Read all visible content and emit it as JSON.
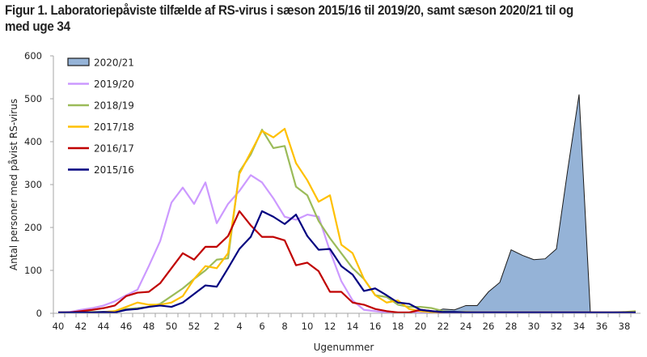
{
  "figure": {
    "title": "Figur 1. Laboratoriepåviste tilfælde af RS-virus i sæson 2015/16 til 2019/20, samt sæson 2020/21 til og med uge 34"
  },
  "chart_data": {
    "type": "line",
    "title": "Figur 1. Laboratoriepåviste tilfælde af RS-virus i sæson 2015/16 til 2019/20, samt sæson 2020/21 til og med uge 34",
    "xlabel": "Ugenummer",
    "ylabel": "Antal personer med påvist RS-virus",
    "ylim": [
      0,
      600
    ],
    "yticks": [
      0,
      100,
      200,
      300,
      400,
      500,
      600
    ],
    "x": [
      40,
      41,
      42,
      43,
      44,
      45,
      46,
      47,
      48,
      49,
      50,
      51,
      52,
      1,
      2,
      3,
      4,
      5,
      6,
      7,
      8,
      9,
      10,
      11,
      12,
      13,
      14,
      15,
      16,
      17,
      18,
      19,
      20,
      21,
      22,
      23,
      24,
      25,
      26,
      27,
      28,
      29,
      30,
      31,
      32,
      33,
      34,
      35,
      36,
      37,
      38,
      39
    ],
    "xtick_labels": [
      "40",
      "42",
      "44",
      "46",
      "48",
      "50",
      "52",
      "2",
      "4",
      "6",
      "8",
      "10",
      "12",
      "14",
      "16",
      "18",
      "20",
      "22",
      "24",
      "26",
      "28",
      "30",
      "32",
      "34",
      "36",
      "38"
    ],
    "grid": false,
    "legend_position": "top-left",
    "colors": {
      "2020/21": "#95b3d7",
      "2019/20": "#cc99ff",
      "2018/19": "#9bbb59",
      "2017/18": "#ffc000",
      "2016/17": "#c00000",
      "2015/16": "#000080"
    },
    "series": [
      {
        "name": "2020/21",
        "style": "area",
        "values": [
          0,
          0,
          0,
          0,
          0,
          0,
          0,
          0,
          0,
          0,
          0,
          0,
          0,
          0,
          0,
          0,
          0,
          0,
          0,
          0,
          0,
          0,
          0,
          0,
          0,
          0,
          0,
          0,
          0,
          0,
          0,
          0,
          0,
          3,
          10,
          8,
          18,
          18,
          50,
          72,
          148,
          135,
          125,
          127,
          150,
          335,
          510,
          0,
          0,
          0,
          0,
          0
        ]
      },
      {
        "name": "2019/20",
        "style": "line",
        "values": [
          2,
          3,
          8,
          12,
          18,
          28,
          42,
          55,
          110,
          168,
          258,
          293,
          255,
          305,
          210,
          255,
          285,
          322,
          305,
          268,
          225,
          218,
          230,
          225,
          145,
          75,
          30,
          8,
          5,
          2,
          2,
          2,
          1,
          1,
          1,
          1,
          1,
          1,
          1,
          1,
          1,
          1,
          1,
          1,
          1,
          1,
          1,
          1,
          1,
          1,
          1,
          1
        ]
      },
      {
        "name": "2018/19",
        "style": "line",
        "values": [
          2,
          2,
          2,
          3,
          3,
          5,
          10,
          12,
          15,
          22,
          40,
          58,
          80,
          100,
          125,
          128,
          330,
          370,
          428,
          385,
          390,
          295,
          275,
          215,
          175,
          140,
          105,
          80,
          42,
          38,
          20,
          15,
          15,
          12,
          5,
          3,
          3,
          2,
          2,
          2,
          2,
          2,
          2,
          2,
          2,
          2,
          2,
          2,
          2,
          2,
          3,
          5
        ]
      },
      {
        "name": "2017/18",
        "style": "line",
        "values": [
          2,
          2,
          2,
          2,
          3,
          5,
          15,
          25,
          20,
          20,
          25,
          40,
          80,
          110,
          105,
          140,
          325,
          375,
          425,
          410,
          430,
          350,
          310,
          260,
          275,
          160,
          140,
          80,
          42,
          25,
          30,
          10,
          5,
          3,
          2,
          2,
          2,
          2,
          2,
          2,
          2,
          2,
          2,
          2,
          2,
          2,
          2,
          2,
          2,
          2,
          2,
          2
        ]
      },
      {
        "name": "2016/17",
        "style": "line",
        "values": [
          2,
          2,
          5,
          8,
          12,
          18,
          40,
          48,
          50,
          70,
          105,
          140,
          125,
          155,
          155,
          180,
          238,
          205,
          178,
          178,
          170,
          112,
          118,
          98,
          50,
          50,
          25,
          20,
          10,
          5,
          2,
          2,
          8,
          5,
          2,
          2,
          2,
          2,
          2,
          2,
          2,
          2,
          2,
          2,
          2,
          2,
          2,
          2,
          2,
          2,
          2,
          2
        ]
      },
      {
        "name": "2015/16",
        "style": "line",
        "values": [
          2,
          2,
          2,
          2,
          3,
          2,
          8,
          10,
          15,
          18,
          15,
          25,
          45,
          65,
          62,
          105,
          150,
          178,
          238,
          225,
          208,
          230,
          180,
          148,
          150,
          110,
          90,
          52,
          58,
          42,
          25,
          22,
          8,
          5,
          3,
          3,
          2,
          2,
          2,
          2,
          2,
          2,
          2,
          2,
          2,
          2,
          2,
          2,
          2,
          2,
          2,
          2
        ]
      }
    ]
  }
}
